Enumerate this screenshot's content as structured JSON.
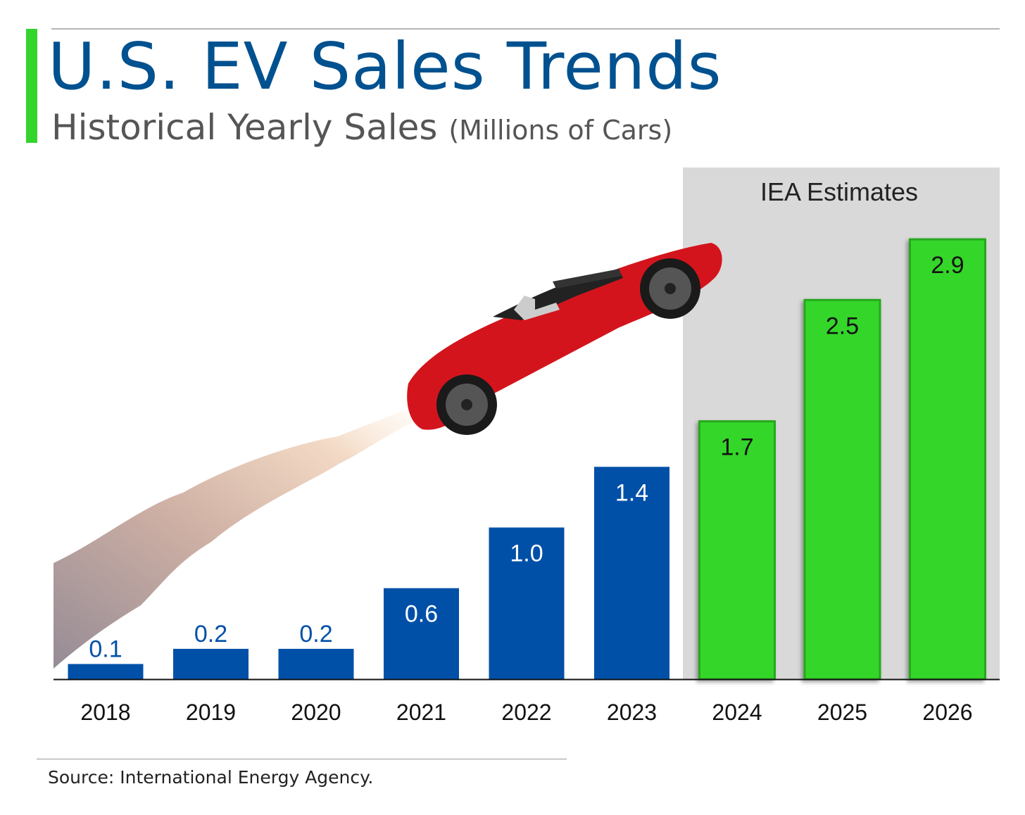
{
  "header": {
    "title": "U.S. EV Sales Trends",
    "subtitle": "Historical Yearly Sales",
    "subtitle_unit": "(Millions of Cars)"
  },
  "chart_data": {
    "type": "bar",
    "title": "U.S. EV Sales Trends",
    "subtitle": "Historical Yearly Sales (Millions of Cars)",
    "xlabel": "",
    "ylabel": "Millions of Cars",
    "ylim": [
      0,
      3.1
    ],
    "grid": false,
    "categories": [
      "2018",
      "2019",
      "2020",
      "2021",
      "2022",
      "2023",
      "2024",
      "2025",
      "2026"
    ],
    "values": [
      0.1,
      0.2,
      0.2,
      0.6,
      1.0,
      1.4,
      1.7,
      2.5,
      2.9
    ],
    "value_labels": [
      "0.1",
      "0.2",
      "0.2",
      "0.6",
      "1.0",
      "1.4",
      "1.7",
      "2.5",
      "2.9"
    ],
    "series_type": [
      "historical",
      "historical",
      "historical",
      "historical",
      "historical",
      "historical",
      "estimate",
      "estimate",
      "estimate"
    ],
    "annotations": [
      {
        "text": "IEA Estimates",
        "applies_to": [
          "2024",
          "2025",
          "2026"
        ]
      }
    ],
    "colors": {
      "historical": "#0050a8",
      "estimate": "#34d62c",
      "estimate_border": "#25a81f",
      "estimate_band": "#d9d9d9"
    }
  },
  "footer": {
    "source": "Source: International Energy Agency."
  }
}
